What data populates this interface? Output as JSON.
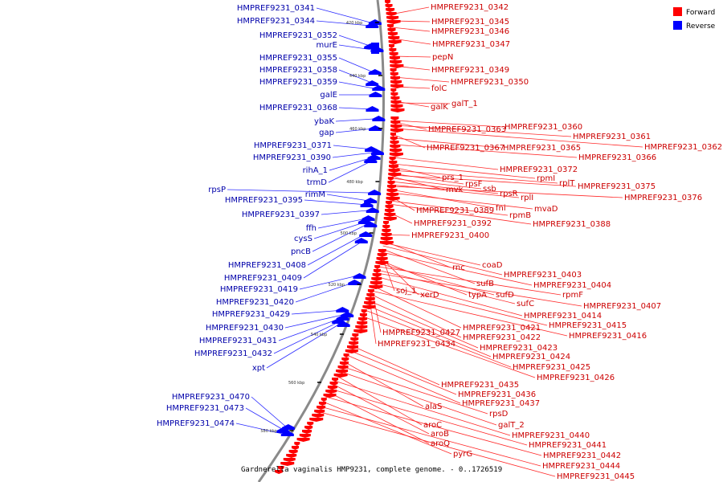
{
  "legend": [
    {
      "label": "Forward",
      "color": "#ff0000"
    },
    {
      "label": "Reverse",
      "color": "#0000ff"
    }
  ],
  "caption": "Gardnerella vaginalis HMP9231, complete genome. - 0..1726519",
  "ticks": [
    "420 kbp",
    "440 kbp",
    "460 kbp",
    "480 kbp",
    "500 kbp",
    "520 kbp",
    "540 kbp",
    "560 kbp",
    "580 kbp"
  ],
  "reverse_genes": [
    "HMPREF9231_0341",
    "HMPREF9231_0344",
    "HMPREF9231_0352",
    "murE",
    "HMPREF9231_0355",
    "HMPREF9231_0358",
    "HMPREF9231_0359",
    "galE",
    "HMPREF9231_0368",
    "ybaK",
    "gap",
    "HMPREF9231_0371",
    "HMPREF9231_0390",
    "rihA_1",
    "trmD",
    "rpsP",
    "rimM",
    "HMPREF9231_0395",
    "HMPREF9231_0397",
    "ffh",
    "cysS",
    "pncB",
    "HMPREF9231_0408",
    "HMPREF9231_0409",
    "HMPREF9231_0419",
    "HMPREF9231_0420",
    "HMPREF9231_0429",
    "HMPREF9231_0430",
    "HMPREF9231_0431",
    "HMPREF9231_0432",
    "xpt",
    "HMPREF9231_0470",
    "HMPREF9231_0473",
    "HMPREF9231_0474"
  ],
  "forward_genes": [
    "HMPREF9231_0342",
    "HMPREF9231_0345",
    "HMPREF9231_0346",
    "HMPREF9231_0347",
    "pepN",
    "HMPREF9231_0349",
    "HMPREF9231_0350",
    "folC",
    "galK",
    "galT_1",
    "HMPREF9231_0360",
    "HMPREF9231_0363",
    "HMPREF9231_0361",
    "HMPREF9231_0362",
    "HMPREF9231_0367",
    "HMPREF9231_0365",
    "HMPREF9231_0366",
    "HMPREF9231_0372",
    "rpmI",
    "prs_1",
    "rplT",
    "rpsF",
    "HMPREF9231_0375",
    "mvk",
    "ssb",
    "rpsR",
    "rplI",
    "HMPREF9231_0376",
    "fni",
    "mvaD",
    "HMPREF9231_0389",
    "rpmB",
    "HMPREF9231_0388",
    "HMPREF9231_0392",
    "HMPREF9231_0400",
    "rnc",
    "coaD",
    "HMPREF9231_0403",
    "sufB",
    "HMPREF9231_0404",
    "soj_1",
    "xerD",
    "typA",
    "sufD",
    "rpmF",
    "sufC",
    "HMPREF9231_0407",
    "HMPREF9231_0414",
    "HMPREF9231_0415",
    "HMPREF9231_0421",
    "HMPREF9231_0427",
    "HMPREF9231_0416",
    "HMPREF9231_0422",
    "HMPREF9231_0434",
    "HMPREF9231_0423",
    "HMPREF9231_0424",
    "HMPREF9231_0425",
    "HMPREF9231_0426",
    "HMPREF9231_0435",
    "HMPREF9231_0436",
    "HMPREF9231_0437",
    "alaS",
    "rpsD",
    "galT_2",
    "aroC",
    "HMPREF9231_0440",
    "aroB",
    "HMPREF9231_0441",
    "aroQ",
    "HMPREF9231_0442",
    "pyrG",
    "HMPREF9231_0444",
    "HMPREF9231_0445"
  ]
}
